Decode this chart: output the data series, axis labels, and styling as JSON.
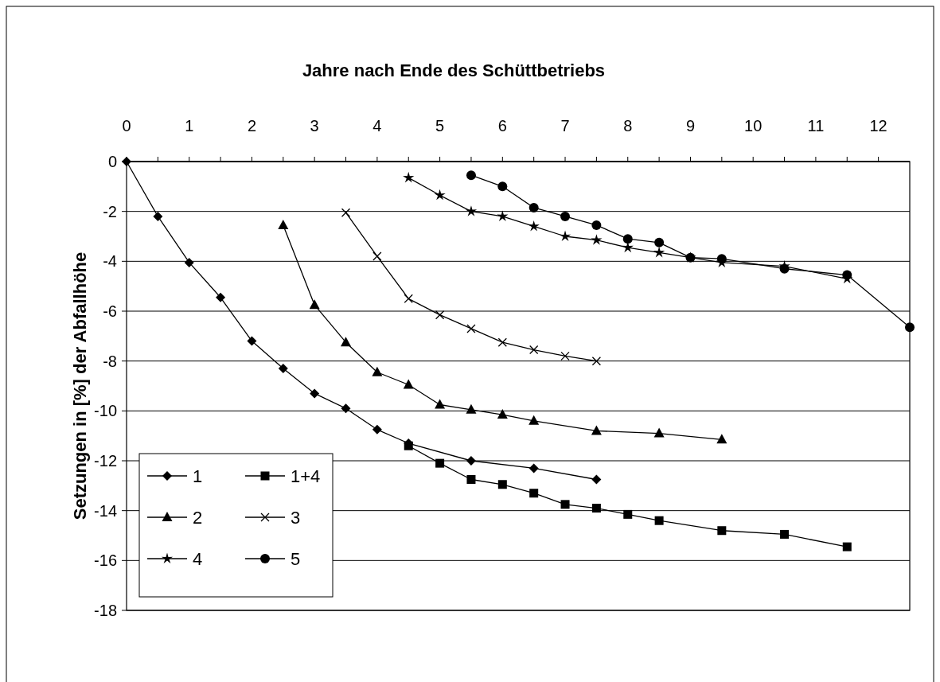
{
  "chart_data": {
    "type": "line",
    "title": "Jahre nach Ende des Schüttbetriebs",
    "ylabel": "Setzungen in [%] der Abfallhöhe",
    "xlim": [
      0,
      12.5
    ],
    "xticks": [
      0,
      {
        "value": 0.5,
        "label": null
      },
      1,
      {
        "value": 1.5,
        "label": null
      },
      2,
      {
        "value": 2.5,
        "label": null
      },
      3,
      {
        "value": 3.5,
        "label": null
      },
      4,
      {
        "value": 4.5,
        "label": null
      },
      5,
      {
        "value": 5.5,
        "label": null
      },
      6,
      {
        "value": 6.5,
        "label": null
      },
      7,
      {
        "value": 7.5,
        "label": null
      },
      8,
      {
        "value": 8.5,
        "label": null
      },
      9,
      {
        "value": 9.5,
        "label": null
      },
      10,
      {
        "value": 10.5,
        "label": null
      },
      11,
      {
        "value": 11.5,
        "label": null
      },
      12
    ],
    "ylim": [
      -18,
      0
    ],
    "yticks": [
      -18,
      -16,
      -14,
      -12,
      -10,
      -8,
      -6,
      -4,
      -2,
      0
    ],
    "grid": "y",
    "legend": "bottom left",
    "line_style": "solid",
    "series": [
      {
        "name": "1",
        "color": "#000000",
        "marker": "diamond",
        "x": [
          0,
          0.5,
          1,
          1.5,
          2,
          2.5,
          3,
          3.5,
          4,
          4.5,
          5.5,
          6.5,
          7.5
        ],
        "values": [
          0,
          -2.2,
          -4.05,
          -5.45,
          -7.2,
          -8.3,
          -9.3,
          -9.9,
          -10.75,
          -11.3,
          -12.0,
          -12.3,
          -12.75
        ]
      },
      {
        "name": "1+4",
        "color": "#000000",
        "marker": "square",
        "x": [
          4.5,
          5,
          5.5,
          6,
          6.5,
          7,
          7.5,
          8,
          8.5,
          9.5,
          10.5,
          11.5
        ],
        "values": [
          -11.4,
          -12.1,
          -12.75,
          -12.95,
          -13.3,
          -13.75,
          -13.9,
          -14.15,
          -14.4,
          -14.8,
          -14.95,
          -15.45
        ]
      },
      {
        "name": "2",
        "color": "#000000",
        "marker": "triangle",
        "x": [
          2.5,
          3,
          3.5,
          4,
          4.5,
          5,
          5.5,
          6,
          6.5,
          7.5,
          8.5,
          9.5
        ],
        "values": [
          -2.55,
          -5.75,
          -7.25,
          -8.45,
          -8.95,
          -9.75,
          -9.95,
          -10.15,
          -10.4,
          -10.8,
          -10.9,
          -11.15
        ]
      },
      {
        "name": "3",
        "color": "#000000",
        "marker": "cross",
        "x": [
          3.5,
          4,
          4.5,
          5,
          5.5,
          6,
          6.5,
          7,
          7.5
        ],
        "values": [
          -2.05,
          -3.8,
          -5.5,
          -6.15,
          -6.7,
          -7.25,
          -7.55,
          -7.8,
          -8.0
        ]
      },
      {
        "name": "4",
        "color": "#000000",
        "marker": "star",
        "x": [
          4.5,
          5,
          5.5,
          6,
          6.5,
          7,
          7.5,
          8,
          8.5,
          9,
          9.5,
          10.5,
          11.5
        ],
        "values": [
          -0.65,
          -1.35,
          -2.0,
          -2.2,
          -2.6,
          -3.0,
          -3.15,
          -3.45,
          -3.65,
          -3.85,
          -4.05,
          -4.2,
          -4.7
        ]
      },
      {
        "name": "5",
        "color": "#000000",
        "marker": "circle",
        "x": [
          5.5,
          6,
          6.5,
          7,
          7.5,
          8,
          8.5,
          9,
          9.5,
          10.5,
          11.5,
          12.5
        ],
        "values": [
          -0.55,
          -1.0,
          -1.85,
          -2.2,
          -2.55,
          -3.1,
          -3.25,
          -3.85,
          -3.9,
          -4.3,
          -4.55,
          -6.65
        ]
      }
    ]
  }
}
